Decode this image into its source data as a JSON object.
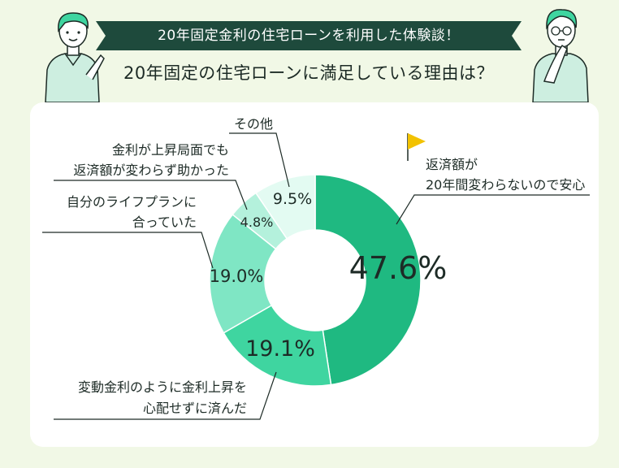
{
  "header": {
    "banner": "20年固定金利の住宅ローンを利用した体験談！",
    "title": "20年固定の住宅ローンに満足している理由は？"
  },
  "colors": {
    "banner_bg": "#1e4a3c",
    "text_dark": "#1d2b26",
    "flag": "#f2c200"
  },
  "chart_data": {
    "type": "pie",
    "donut": true,
    "unit": "%",
    "slices": [
      {
        "label_lines": [
          "返済額が",
          "20年間変わらないので安心"
        ],
        "value": 47.6,
        "display": "47.6%",
        "color": "#1fb981"
      },
      {
        "label_lines": [
          "変動金利のように金利上昇を",
          "心配せずに済んだ"
        ],
        "value": 19.1,
        "display": "19.1%",
        "color": "#3fd5a0"
      },
      {
        "label_lines": [
          "自分のライフプランに",
          "合っていた"
        ],
        "value": 19.0,
        "display": "19.0%",
        "color": "#7fe6c4"
      },
      {
        "label_lines": [
          "金利が上昇局面でも",
          "返済額が変わらず助かった"
        ],
        "value": 4.8,
        "display": "4.8%",
        "color": "#b4f1dc"
      },
      {
        "label_lines": [
          "その他"
        ],
        "value": 9.5,
        "display": "9.5%",
        "color": "#e3fbf2"
      }
    ]
  }
}
